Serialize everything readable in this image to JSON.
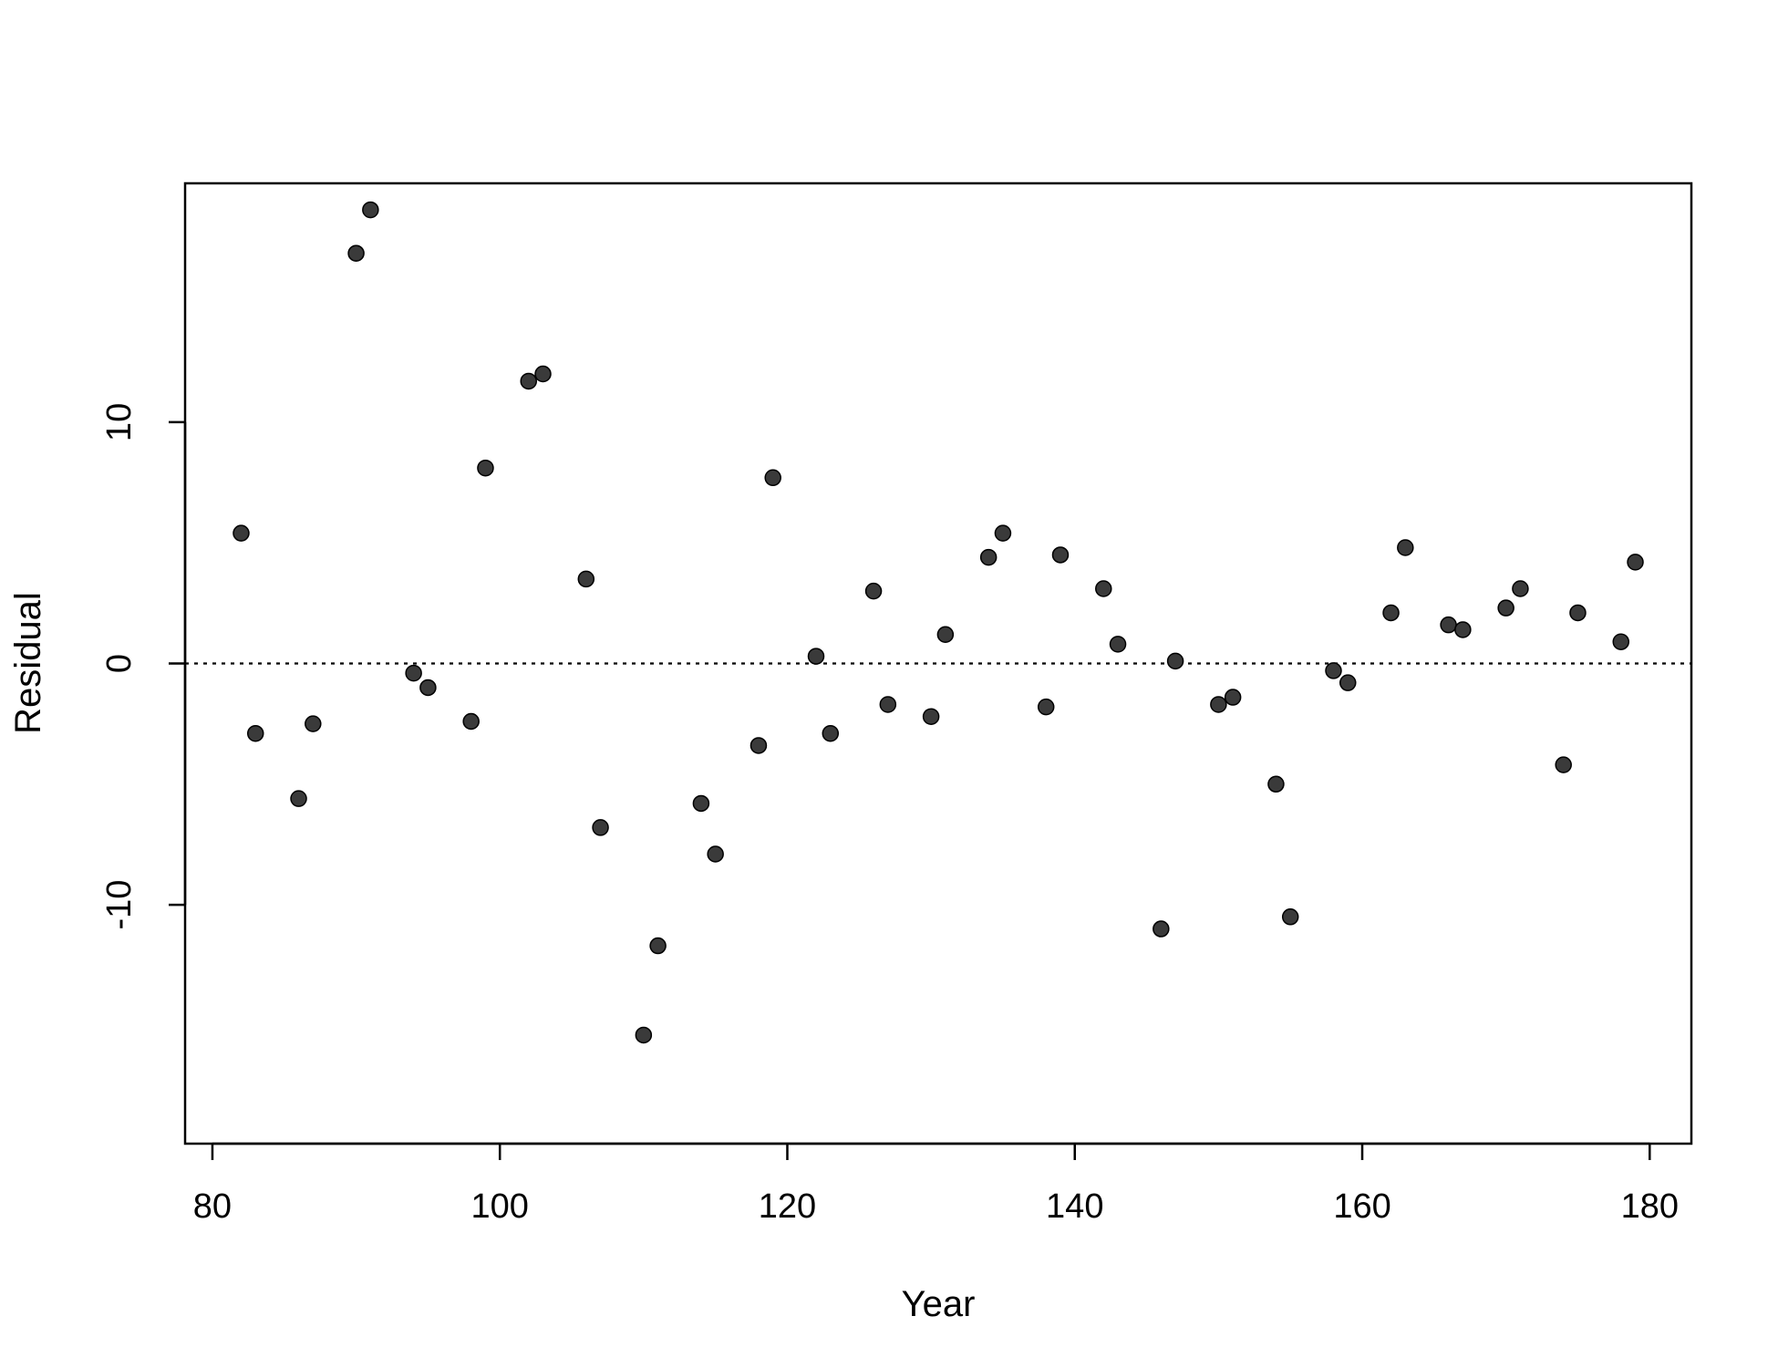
{
  "chart_data": {
    "type": "scatter",
    "title": "",
    "xlabel": "Year",
    "ylabel": "Residual",
    "xlim": [
      78.1,
      182.9
    ],
    "ylim": [
      -19.9,
      19.9
    ],
    "x_ticks": [
      80,
      100,
      120,
      140,
      160,
      180
    ],
    "y_ticks": [
      -10,
      0,
      10
    ],
    "x_tick_labels": [
      "80",
      "100",
      "120",
      "140",
      "160",
      "180"
    ],
    "y_tick_labels": [
      "-10",
      "0",
      "10"
    ],
    "reference_line": {
      "y": 0,
      "style": "dotted"
    },
    "grid": false,
    "legend": "none",
    "colors": {
      "point": "#3a3a3a",
      "axis": "#000000"
    },
    "series": [
      {
        "points": [
          [
            82,
            5.4
          ],
          [
            83,
            -2.9
          ],
          [
            86,
            -5.6
          ],
          [
            87,
            -2.5
          ],
          [
            90,
            17.0
          ],
          [
            91,
            18.8
          ],
          [
            94,
            -0.4
          ],
          [
            95,
            -1.0
          ],
          [
            98,
            -2.4
          ],
          [
            99,
            8.1
          ],
          [
            102,
            11.7
          ],
          [
            103,
            12.0
          ],
          [
            106,
            3.5
          ],
          [
            107,
            -6.8
          ],
          [
            110,
            -15.4
          ],
          [
            111,
            -11.7
          ],
          [
            114,
            -5.8
          ],
          [
            115,
            -7.9
          ],
          [
            118,
            -3.4
          ],
          [
            119,
            7.7
          ],
          [
            122,
            0.3
          ],
          [
            123,
            -2.9
          ],
          [
            126,
            3.0
          ],
          [
            127,
            -1.7
          ],
          [
            130,
            -2.2
          ],
          [
            131,
            1.2
          ],
          [
            134,
            4.4
          ],
          [
            135,
            5.4
          ],
          [
            138,
            -1.8
          ],
          [
            139,
            4.5
          ],
          [
            142,
            3.1
          ],
          [
            143,
            0.8
          ],
          [
            146,
            -11.0
          ],
          [
            147,
            0.1
          ],
          [
            150,
            -1.7
          ],
          [
            151,
            -1.4
          ],
          [
            154,
            -5.0
          ],
          [
            155,
            -10.5
          ],
          [
            158,
            -0.3
          ],
          [
            159,
            -0.8
          ],
          [
            162,
            2.1
          ],
          [
            163,
            4.8
          ],
          [
            166,
            1.6
          ],
          [
            167,
            1.4
          ],
          [
            170,
            2.3
          ],
          [
            171,
            3.1
          ],
          [
            174,
            -4.2
          ],
          [
            175,
            2.1
          ],
          [
            178,
            0.9
          ],
          [
            179,
            4.2
          ]
        ]
      }
    ]
  }
}
